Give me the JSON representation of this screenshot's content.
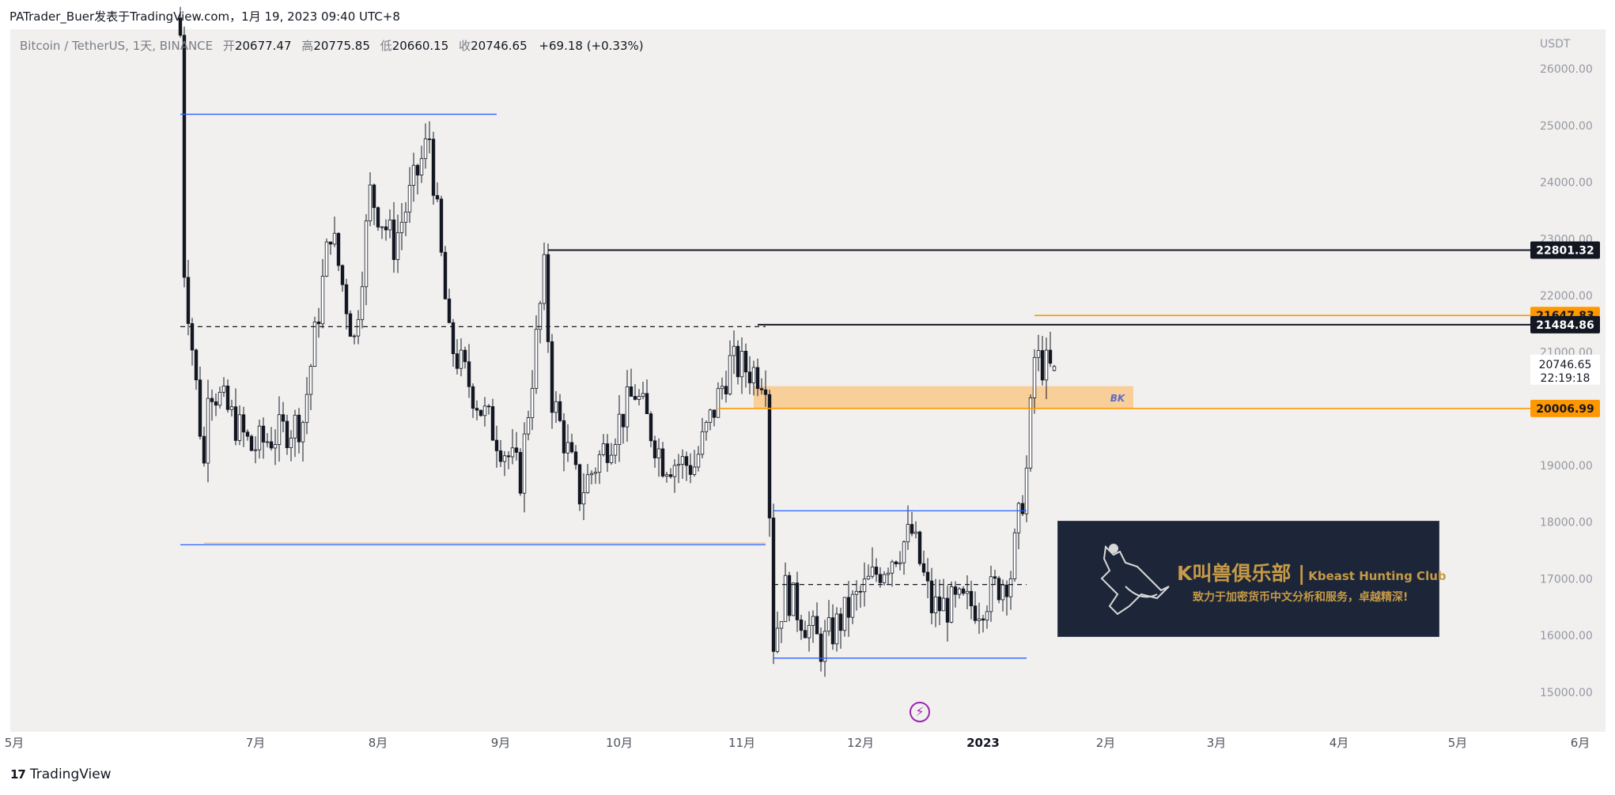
{
  "header": {
    "publish_line": "PATrader_Buer发表于TradingView.com，1月 19, 2023 09:40 UTC+8"
  },
  "legend": {
    "symbol": "Bitcoin / TetherUS, 1天, BINANCE",
    "open_label": "开",
    "open": "20677.47",
    "high_label": "高",
    "high": "20775.85",
    "low_label": "低",
    "low": "20660.15",
    "close_label": "收",
    "close": "20746.65",
    "change": "+69.18 (+0.33%)"
  },
  "footer": {
    "brand": "TradingView",
    "logo_text": "17"
  },
  "banner": {
    "title": "K叫兽俱乐部 |",
    "title_en": "Kbeast Hunting Club",
    "subtitle": "致力于加密货币中文分析和服务，卓越精深!"
  },
  "icons": {
    "lightning": "lightning-icon",
    "logo": "tradingview-logo-icon"
  },
  "colors": {
    "background": "#f1f0ef",
    "up": "#ffffff",
    "down": "#131722",
    "blue_line": "#2962ff",
    "orange": "#ff9800",
    "zone": "#f9c88a"
  },
  "chart_data": {
    "type": "candlestick",
    "title": "",
    "currency_label": "USDT",
    "y_ticks": [
      26000,
      25000,
      24000,
      23000,
      22000,
      21000,
      20000,
      19000,
      18000,
      17000,
      16000,
      15000
    ],
    "ylim": [
      14300,
      26700
    ],
    "x_ticks": [
      {
        "label": "5月",
        "date": "2022-05-01"
      },
      {
        "label": "7月",
        "date": "2022-07-01"
      },
      {
        "label": "8月",
        "date": "2022-08-01"
      },
      {
        "label": "9月",
        "date": "2022-09-01"
      },
      {
        "label": "10月",
        "date": "2022-10-01"
      },
      {
        "label": "11月",
        "date": "2022-11-01"
      },
      {
        "label": "12月",
        "date": "2022-12-01"
      },
      {
        "label": "2023",
        "date": "2023-01-01",
        "bold": true
      },
      {
        "label": "2月",
        "date": "2023-02-01"
      },
      {
        "label": "3月",
        "date": "2023-03-01"
      },
      {
        "label": "4月",
        "date": "2023-04-01"
      },
      {
        "label": "5月",
        "date": "2023-05-01"
      },
      {
        "label": "6月",
        "date": "2023-06-01"
      }
    ],
    "series_anchors": [
      {
        "date": "2022-06-12",
        "close": 26600
      },
      {
        "date": "2022-06-13",
        "close": 22500
      },
      {
        "date": "2022-06-18",
        "close": 19000
      },
      {
        "date": "2022-06-19",
        "close": 20500
      },
      {
        "date": "2022-06-30",
        "close": 19300
      },
      {
        "date": "2022-07-13",
        "close": 19800
      },
      {
        "date": "2022-07-20",
        "close": 23200
      },
      {
        "date": "2022-07-26",
        "close": 21200
      },
      {
        "date": "2022-07-30",
        "close": 23800
      },
      {
        "date": "2022-08-05",
        "close": 22900
      },
      {
        "date": "2022-08-14",
        "close": 24800
      },
      {
        "date": "2022-08-19",
        "close": 21200
      },
      {
        "date": "2022-08-27",
        "close": 20000
      },
      {
        "date": "2022-09-06",
        "close": 18800
      },
      {
        "date": "2022-09-12",
        "close": 22400
      },
      {
        "date": "2022-09-14",
        "close": 20200
      },
      {
        "date": "2022-09-21",
        "close": 18500
      },
      {
        "date": "2022-10-05",
        "close": 20300
      },
      {
        "date": "2022-10-12",
        "close": 19100
      },
      {
        "date": "2022-10-20",
        "close": 19000
      },
      {
        "date": "2022-10-29",
        "close": 20800
      },
      {
        "date": "2022-11-07",
        "close": 20600
      },
      {
        "date": "2022-11-09",
        "close": 15900
      },
      {
        "date": "2022-11-12",
        "close": 16800
      },
      {
        "date": "2022-11-21",
        "close": 15800
      },
      {
        "date": "2022-12-05",
        "close": 17100
      },
      {
        "date": "2022-12-14",
        "close": 17800
      },
      {
        "date": "2022-12-19",
        "close": 16500
      },
      {
        "date": "2022-12-31",
        "close": 16550
      },
      {
        "date": "2023-01-08",
        "close": 17100
      },
      {
        "date": "2023-01-12",
        "close": 18900
      },
      {
        "date": "2023-01-14",
        "close": 20900
      },
      {
        "date": "2023-01-18",
        "close": 20680
      },
      {
        "date": "2023-01-19",
        "close": 20746.65
      }
    ],
    "horizontal_lines": [
      {
        "kind": "blue",
        "from": "2022-06-12",
        "to": "2022-08-31",
        "price": 25200
      },
      {
        "kind": "blue",
        "from": "2022-06-12",
        "to": "2022-11-07",
        "price": 17600
      },
      {
        "kind": "orange-thin",
        "from": "2022-06-18",
        "to": "2022-11-07",
        "price": 17630
      },
      {
        "kind": "blue",
        "from": "2022-11-09",
        "to": "2023-01-12",
        "price": 18200
      },
      {
        "kind": "blue",
        "from": "2022-11-09",
        "to": "2023-01-12",
        "price": 15600
      },
      {
        "kind": "black-dashed",
        "from": "2022-06-12",
        "to": "2022-11-07",
        "price": 21450
      },
      {
        "kind": "black-dashed",
        "from": "2022-11-09",
        "to": "2023-01-12",
        "price": 16900
      },
      {
        "kind": "black",
        "from": "2022-09-13",
        "to": "axis",
        "price": 22801.32
      },
      {
        "kind": "black",
        "from": "2022-11-05",
        "to": "axis",
        "price": 21484.86
      },
      {
        "kind": "orange",
        "from": "2023-01-14",
        "to": "axis",
        "price": 21647.83
      },
      {
        "kind": "orange",
        "from": "2022-10-26",
        "to": "axis",
        "price": 20006.99
      }
    ],
    "zone": {
      "label": "BK",
      "from": "2022-11-04",
      "to": "2023-02-08",
      "top": 20400,
      "bottom": 20006.99
    },
    "price_labels": [
      {
        "value": "22801.32",
        "price": 22801.32,
        "style": "black"
      },
      {
        "value": "21647.83",
        "price": 21647.83,
        "style": "orange"
      },
      {
        "value": "21484.86",
        "price": 21484.86,
        "style": "black"
      },
      {
        "value": "20006.99",
        "price": 20006.99,
        "style": "orange"
      }
    ],
    "last_price": {
      "value": "20746.65",
      "countdown": "22:19:18",
      "price": 20746.65
    }
  }
}
